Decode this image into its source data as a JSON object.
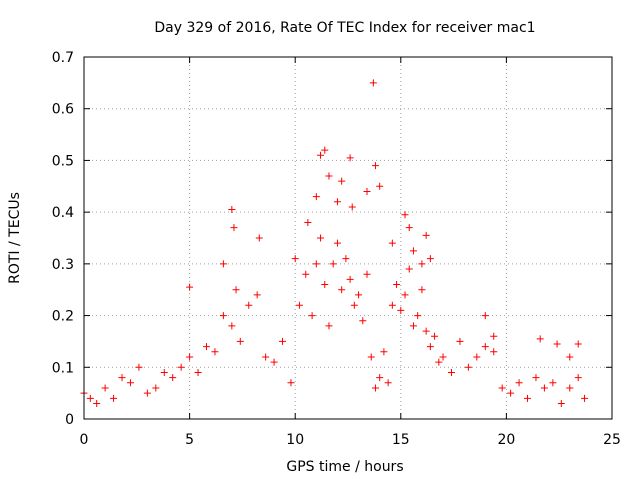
{
  "chart_data": {
    "type": "scatter",
    "title": "Day 329 of 2016, Rate Of TEC Index for receiver mac1",
    "xlabel": "GPS time / hours",
    "ylabel": "ROTI / TECUs",
    "xlim": [
      0,
      25
    ],
    "ylim": [
      0,
      0.7
    ],
    "x_ticks": [
      0,
      5,
      10,
      15,
      20,
      25
    ],
    "y_ticks": [
      0,
      0.1,
      0.2,
      0.3,
      0.4,
      0.5,
      0.6,
      0.7
    ],
    "x_tick_labels": [
      "0",
      "5",
      "10",
      "15",
      "20",
      "25"
    ],
    "y_tick_labels": [
      "0",
      "0.1",
      "0.2",
      "0.3",
      "0.4",
      "0.5",
      "0.6",
      "0.7"
    ],
    "grid": true,
    "marker": "+",
    "series_color": "#ff0000",
    "series": [
      {
        "name": "ROTI",
        "x": [
          0.0,
          0.3,
          0.6,
          1.0,
          1.4,
          1.8,
          2.2,
          2.6,
          3.0,
          3.4,
          3.8,
          4.2,
          4.6,
          5.0,
          5.4,
          5.8,
          6.2,
          6.6,
          7.0,
          7.2,
          7.4,
          7.8,
          8.2,
          8.6,
          9.0,
          9.4,
          9.8,
          10.2,
          10.5,
          10.8,
          11.0,
          11.2,
          11.4,
          11.6,
          11.8,
          12.0,
          12.2,
          12.4,
          12.6,
          12.8,
          13.0,
          13.2,
          13.4,
          13.6,
          13.8,
          14.0,
          14.2,
          14.4,
          14.6,
          14.8,
          15.0,
          15.2,
          15.4,
          15.6,
          15.8,
          16.0,
          16.2,
          16.4,
          16.6,
          16.8,
          17.0,
          17.4,
          17.8,
          18.2,
          18.6,
          19.0,
          19.4,
          19.8,
          20.2,
          20.6,
          21.0,
          21.4,
          21.8,
          22.2,
          22.6,
          23.0,
          23.4,
          23.7,
          5.0,
          6.6,
          7.0,
          7.1,
          8.3,
          10.0,
          10.6,
          11.0,
          11.2,
          11.4,
          11.6,
          12.0,
          12.2,
          12.6,
          12.7,
          13.4,
          13.7,
          13.8,
          14.0,
          14.6,
          15.2,
          15.4,
          15.6,
          16.0,
          16.2,
          16.4,
          19.0,
          19.4,
          21.6,
          22.4,
          23.0,
          23.4
        ],
        "y": [
          0.05,
          0.04,
          0.03,
          0.06,
          0.04,
          0.08,
          0.07,
          0.1,
          0.05,
          0.06,
          0.09,
          0.08,
          0.1,
          0.12,
          0.09,
          0.14,
          0.13,
          0.2,
          0.18,
          0.25,
          0.15,
          0.22,
          0.24,
          0.12,
          0.11,
          0.15,
          0.07,
          0.22,
          0.28,
          0.2,
          0.3,
          0.35,
          0.26,
          0.18,
          0.3,
          0.34,
          0.25,
          0.31,
          0.27,
          0.22,
          0.24,
          0.19,
          0.28,
          0.12,
          0.06,
          0.08,
          0.13,
          0.07,
          0.22,
          0.26,
          0.21,
          0.24,
          0.29,
          0.18,
          0.2,
          0.25,
          0.17,
          0.14,
          0.16,
          0.11,
          0.12,
          0.09,
          0.15,
          0.1,
          0.12,
          0.14,
          0.13,
          0.06,
          0.05,
          0.07,
          0.04,
          0.08,
          0.06,
          0.07,
          0.03,
          0.06,
          0.08,
          0.04,
          0.255,
          0.3,
          0.405,
          0.37,
          0.35,
          0.31,
          0.38,
          0.43,
          0.51,
          0.52,
          0.47,
          0.42,
          0.46,
          0.505,
          0.41,
          0.44,
          0.65,
          0.49,
          0.45,
          0.34,
          0.395,
          0.37,
          0.325,
          0.3,
          0.355,
          0.31,
          0.2,
          0.16,
          0.155,
          0.145,
          0.12,
          0.145
        ]
      }
    ]
  }
}
